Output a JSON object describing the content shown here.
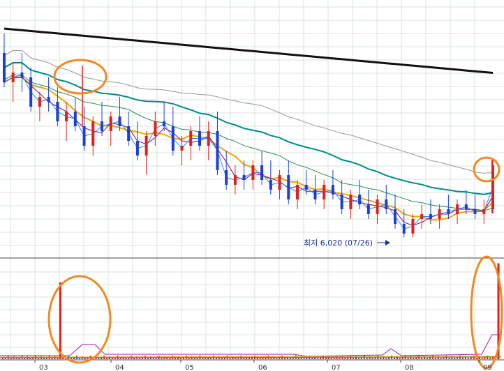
{
  "chart_data": [
    {
      "type": "candlestick",
      "title": "",
      "x_tick_labels": [
        "03",
        "04",
        "05",
        "06",
        "07",
        "08",
        "09"
      ],
      "annotation": {
        "text": "최저 6,020 (07/26)",
        "value": 6020,
        "date": "07/26"
      },
      "moving_averages": {
        "note": "price moving average lines",
        "colors": [
          "#111111",
          "#999999",
          "#008b8b",
          "#2e8b57",
          "#f0a500",
          "#8b008b",
          "#1e90ff"
        ]
      },
      "price_series": {
        "close_path_shape": "declining trend from March to late July, low around late July, then recovery with spike at end",
        "ohlc": [
          [
            5,
            9.8,
            10.2,
            9.1,
            9.2
          ],
          [
            8,
            9.2,
            9.6,
            8.8,
            9.4
          ],
          [
            11,
            9.4,
            9.8,
            9.0,
            9.3
          ],
          [
            14,
            9.3,
            9.5,
            8.6,
            8.7
          ],
          [
            17,
            8.7,
            9.0,
            8.4,
            8.9
          ],
          [
            20,
            8.9,
            9.3,
            8.6,
            8.8
          ],
          [
            23,
            8.8,
            9.1,
            8.3,
            8.4
          ],
          [
            26,
            8.4,
            8.8,
            8.0,
            8.6
          ],
          [
            29,
            8.6,
            8.9,
            8.2,
            8.3
          ],
          [
            32,
            8.3,
            8.7,
            7.8,
            7.9
          ],
          [
            35,
            7.9,
            8.5,
            7.7,
            8.4
          ],
          [
            38,
            8.4,
            8.8,
            8.1,
            8.2
          ],
          [
            41,
            8.2,
            8.6,
            7.9,
            8.5
          ],
          [
            44,
            8.5,
            8.9,
            8.2,
            8.3
          ],
          [
            47,
            8.3,
            8.6,
            7.9,
            8.0
          ],
          [
            50,
            8.0,
            8.4,
            7.6,
            7.7
          ],
          [
            53,
            7.7,
            8.2,
            7.3,
            8.1
          ],
          [
            56,
            8.1,
            8.6,
            7.9,
            8.4
          ],
          [
            59,
            8.4,
            8.8,
            8.2,
            8.3
          ],
          [
            62,
            8.3,
            8.7,
            7.7,
            7.8
          ],
          [
            65,
            7.8,
            8.1,
            7.5,
            7.9
          ],
          [
            68,
            7.9,
            8.3,
            7.6,
            8.2
          ],
          [
            71,
            8.2,
            8.5,
            7.8,
            7.9
          ],
          [
            74,
            7.9,
            8.4,
            7.6,
            8.2
          ],
          [
            77,
            8.2,
            8.6,
            7.3,
            7.4
          ],
          [
            80,
            7.4,
            7.8,
            7.0,
            7.1
          ],
          [
            83,
            7.1,
            7.5,
            6.9,
            7.3
          ],
          [
            86,
            7.3,
            7.6,
            7.0,
            7.2
          ],
          [
            89,
            7.2,
            7.6,
            7.0,
            7.5
          ],
          [
            92,
            7.5,
            7.8,
            7.1,
            7.2
          ],
          [
            95,
            7.2,
            7.6,
            6.9,
            7.0
          ],
          [
            98,
            7.0,
            7.4,
            6.8,
            7.3
          ],
          [
            101,
            7.3,
            7.6,
            6.7,
            6.8
          ],
          [
            104,
            6.8,
            7.2,
            6.6,
            7.1
          ],
          [
            107,
            7.1,
            7.4,
            6.9,
            7.0
          ],
          [
            110,
            7.0,
            7.3,
            6.7,
            6.8
          ],
          [
            113,
            6.8,
            7.2,
            6.6,
            7.1
          ],
          [
            116,
            7.1,
            7.4,
            6.8,
            6.9
          ],
          [
            119,
            6.9,
            7.2,
            6.5,
            6.6
          ],
          [
            122,
            6.6,
            7.0,
            6.4,
            6.9
          ],
          [
            125,
            6.9,
            7.2,
            6.6,
            6.7
          ],
          [
            128,
            6.7,
            7.0,
            6.4,
            6.5
          ],
          [
            131,
            6.5,
            6.9,
            6.3,
            6.8
          ],
          [
            134,
            6.8,
            7.1,
            6.5,
            6.6
          ],
          [
            137,
            6.6,
            6.9,
            6.2,
            6.3
          ],
          [
            140,
            6.3,
            6.6,
            6.02,
            6.1
          ],
          [
            143,
            6.1,
            6.5,
            6.02,
            6.4
          ],
          [
            146,
            6.4,
            6.7,
            6.2,
            6.5
          ],
          [
            149,
            6.5,
            6.8,
            6.3,
            6.4
          ],
          [
            152,
            6.4,
            6.7,
            6.2,
            6.6
          ],
          [
            155,
            6.6,
            6.9,
            6.4,
            6.5
          ],
          [
            158,
            6.5,
            6.8,
            6.3,
            6.7
          ],
          [
            161,
            6.7,
            7.0,
            6.5,
            6.6
          ],
          [
            164,
            6.6,
            6.9,
            6.4,
            6.5
          ],
          [
            167,
            6.5,
            6.8,
            6.3,
            6.6
          ],
          [
            170,
            6.6,
            7.6,
            6.5,
            7.5
          ]
        ]
      },
      "volume_series": {
        "values": [
          1,
          1,
          1,
          1,
          1,
          1,
          1,
          1,
          1,
          1,
          1,
          1,
          1,
          1,
          1,
          1,
          1,
          1,
          1,
          1,
          1,
          1,
          1,
          1,
          1,
          1,
          1,
          1,
          1,
          1,
          1,
          1,
          1,
          1,
          1,
          1,
          1,
          1,
          1,
          1,
          1,
          1,
          1,
          1,
          1,
          1,
          1,
          1,
          1,
          1,
          1,
          1,
          1,
          1,
          1,
          1,
          1,
          1,
          1,
          1,
          1,
          1,
          1,
          1,
          1,
          1,
          1,
          1,
          1,
          1,
          1,
          1,
          1,
          1,
          1,
          1,
          1,
          1,
          1,
          1,
          1,
          1,
          1,
          1,
          1,
          1,
          1,
          1,
          1,
          1,
          1,
          1,
          1,
          1,
          1,
          1,
          1,
          1,
          1,
          1,
          1,
          1,
          1,
          1,
          1,
          1,
          1,
          1,
          1,
          1,
          1,
          1,
          1,
          1,
          1,
          1,
          1,
          1,
          1,
          1,
          1,
          1,
          1,
          1,
          1,
          1,
          1,
          1,
          1,
          1,
          1,
          1,
          1,
          1,
          1,
          1,
          1,
          1,
          1,
          1,
          1,
          1,
          1,
          1,
          1,
          1,
          1,
          1,
          1,
          1,
          1,
          1,
          1,
          1,
          1,
          1,
          1,
          1,
          1,
          1,
          1,
          1,
          1,
          1,
          1,
          1,
          1,
          1,
          1,
          1,
          1,
          1,
          1,
          1,
          1,
          1,
          1,
          1,
          1,
          1,
          1,
          1
        ],
        "spikes": [
          {
            "index": 21,
            "value": 100
          },
          {
            "index": 181,
            "value": 125
          }
        ]
      }
    }
  ]
}
